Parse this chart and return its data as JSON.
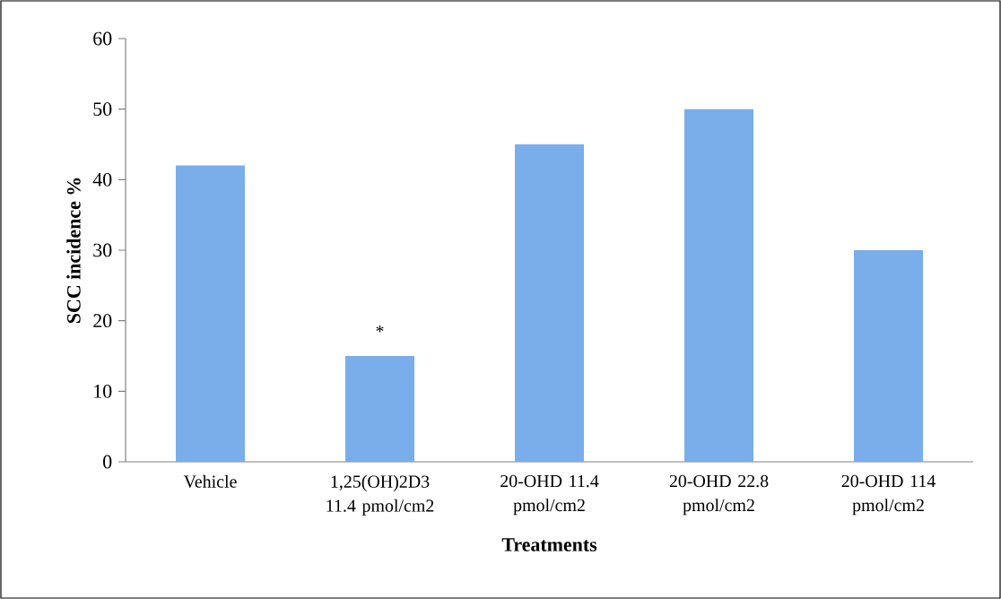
{
  "chart_data": {
    "type": "bar",
    "xlabel": "Treatments",
    "ylabel": "SCC incidence %",
    "categories": [
      "Vehicle",
      "1,25(OH)2D3 11.4 pmol/cm2",
      "20-OHD 11.4 pmol/cm2",
      "20-OHD 22.8 pmol/cm2",
      "20-OHD 114 pmol/cm2"
    ],
    "values": [
      42,
      15,
      45,
      50,
      30
    ],
    "color": "#79aeea",
    "ylim": [
      0,
      60
    ],
    "yticks": [
      0,
      10,
      20,
      30,
      40,
      50,
      60
    ],
    "grid": false,
    "annotations": [
      {
        "text": "*",
        "x": "1,25(OH)2D3 11.4 pmol/cm2",
        "y": 15
      }
    ]
  }
}
